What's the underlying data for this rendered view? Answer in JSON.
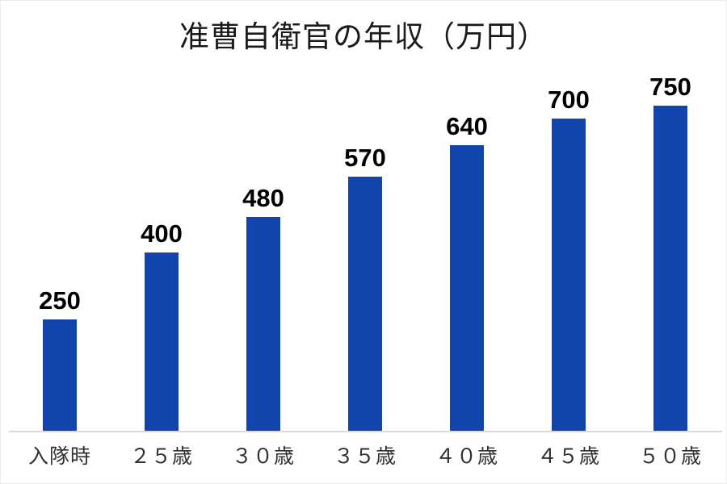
{
  "title": "准曹自衛官の年収（万円）",
  "chart_data": {
    "type": "bar",
    "title": "准曹自衛官の年収（万円）",
    "categories": [
      "入隊時",
      "２５歳",
      "３０歳",
      "３５歳",
      "４０歳",
      "４５歳",
      "５０歳"
    ],
    "values": [
      250,
      400,
      480,
      570,
      640,
      700,
      750
    ],
    "xlabel": "",
    "ylabel": "",
    "ylim": [
      0,
      800
    ],
    "grid": false,
    "legend": false,
    "data_labels_shown": true,
    "colors": {
      "bar": "#1245ab",
      "value_label": "#000000",
      "category_label": "#303030",
      "title_text": "#1a1a1a",
      "axis_line": "#d9d9d9",
      "background": "#ffffff"
    }
  }
}
